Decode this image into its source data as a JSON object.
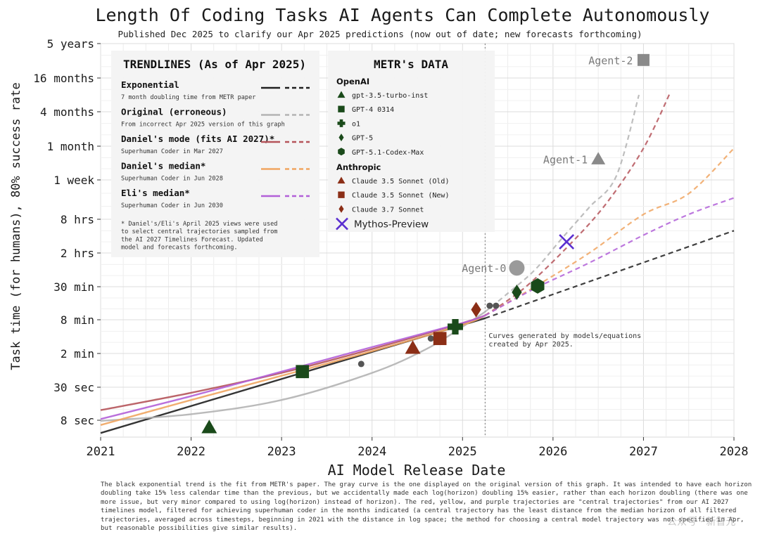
{
  "chart_data": {
    "type": "line",
    "title": "Length Of Coding Tasks AI Agents Can Complete Autonomously",
    "subtitle": "Published Dec 2025 to clarify our Apr 2025 predictions (now out of date; new forecasts forthcoming)",
    "xlabel": "AI Model Release Date",
    "ylabel": "Task time (for humans), 80% success rate",
    "xlim": [
      2021,
      2028
    ],
    "y_scale": "log",
    "x_ticks": [
      "2021",
      "2022",
      "2023",
      "2024",
      "2025",
      "2026",
      "2027",
      "2028"
    ],
    "y_ticks": [
      "8 sec",
      "30 sec",
      "2 min",
      "8 min",
      "30 min",
      "2 hrs",
      "8 hrs",
      "1 week",
      "1 month",
      "4 months",
      "16 months",
      "5 years"
    ],
    "grid": true,
    "cutoff_date": "Apr 2025",
    "cutoff_note": [
      "Curves generated by models/equations",
      "created by Apr 2025."
    ],
    "trendline_legend": {
      "title": "TRENDLINES (As of Apr 2025)",
      "placement": "top-left",
      "items": [
        {
          "name": "Exponential",
          "desc": "7 month doubling time from METR paper",
          "color": "#1f1f1f"
        },
        {
          "name": "Original (erroneous)",
          "desc": "From incorrect Apr 2025 version of this graph",
          "color": "#b3b3b3"
        },
        {
          "name": "Daniel's mode (fits AI 2027)*",
          "desc": "Superhuman Coder in Mar 2027",
          "color": "#b5545a"
        },
        {
          "name": "Daniel's median*",
          "desc": "Superhuman Coder in Jun 2028",
          "color": "#f0a560"
        },
        {
          "name": "Eli's median*",
          "desc": "Superhuman Coder in Jun 2030",
          "color": "#b260d8"
        }
      ],
      "footnote": [
        "* Daniel's/Eli's April 2025 views were used",
        "to select central trajectories sampled from",
        "the AI 2027 Timelines Forecast. Updated",
        "model and forecasts forthcoming."
      ]
    },
    "data_legend": {
      "title": "METR's DATA",
      "groups": [
        {
          "name": "OpenAI",
          "items": [
            "gpt-3.5-turbo-inst",
            "GPT-4 0314",
            "o1",
            "GPT-5",
            "GPT-5.1-Codex-Max"
          ]
        },
        {
          "name": "Anthropic",
          "items": [
            "Claude 3.5 Sonnet (Old)",
            "Claude 3.5 Sonnet (New)",
            "Claude 3.7 Sonnet"
          ]
        }
      ],
      "extra": "Mythos-Preview"
    },
    "series": [
      {
        "name": "Exponential",
        "color": "#1f1f1f",
        "x": [
          2021.0,
          2025.25,
          2028.0
        ],
        "y_minutes": [
          0.08,
          8.5,
          300
        ]
      },
      {
        "name": "Original (erroneous)",
        "color": "#b3b3b3",
        "x": [
          2021.0,
          2022.0,
          2023.0,
          2024.0,
          2024.6,
          2025.0,
          2025.25,
          2025.5,
          2025.8,
          2026.1,
          2026.4,
          2026.7,
          2026.95
        ],
        "y_minutes": [
          0.13,
          0.17,
          0.3,
          0.9,
          2.4,
          6.0,
          11,
          23,
          60,
          220,
          1200,
          12000,
          350000
        ]
      },
      {
        "name": "Daniel's mode (fits AI 2027)*",
        "color": "#b5545a",
        "x": [
          2021.0,
          2022.0,
          2023.0,
          2024.0,
          2025.0,
          2025.25,
          2025.7,
          2026.2,
          2026.6,
          2027.0,
          2027.3
        ],
        "y_minutes": [
          0.2,
          0.4,
          0.9,
          2.4,
          7.0,
          9.5,
          30,
          180,
          1800,
          40000,
          400000
        ]
      },
      {
        "name": "Daniel's median*",
        "color": "#f0a560",
        "x": [
          2021.0,
          2022.0,
          2023.0,
          2024.0,
          2025.0,
          2025.25,
          2025.8,
          2026.4,
          2027.0,
          2027.5,
          2028.0
        ],
        "y_minutes": [
          0.11,
          0.3,
          0.8,
          2.2,
          6.5,
          9.5,
          30,
          120,
          700,
          3500,
          40000
        ]
      },
      {
        "name": "Eli's median*",
        "color": "#b260d8",
        "x": [
          2021.0,
          2022.0,
          2023.0,
          2024.0,
          2025.0,
          2025.25,
          2025.8,
          2026.4,
          2027.0,
          2027.5,
          2028.0
        ],
        "y_minutes": [
          0.14,
          0.35,
          0.95,
          2.6,
          7.0,
          9.5,
          28,
          80,
          250,
          700,
          2500
        ]
      }
    ],
    "points": [
      {
        "label": "gpt-3.5-turbo-inst",
        "x": 2022.2,
        "y_minutes": 0.1,
        "marker": "triangle",
        "color": "#1a4a1a"
      },
      {
        "label": "GPT-4 0314",
        "x": 2023.23,
        "y_minutes": 0.95,
        "marker": "square",
        "color": "#1a4a1a"
      },
      {
        "label": "",
        "x": 2023.88,
        "y_minutes": 1.3,
        "marker": "dot",
        "color": "#555555"
      },
      {
        "label": "Claude 3.5 Sonnet (Old)",
        "x": 2024.45,
        "y_minutes": 2.5,
        "marker": "triangle",
        "color": "#8b2e16"
      },
      {
        "label": "",
        "x": 2024.65,
        "y_minutes": 3.7,
        "marker": "dot",
        "color": "#555555"
      },
      {
        "label": "Claude 3.5 Sonnet (New)",
        "x": 2024.75,
        "y_minutes": 3.7,
        "marker": "square",
        "color": "#8b2e16"
      },
      {
        "label": "o1",
        "x": 2024.92,
        "y_minutes": 6.0,
        "marker": "plus",
        "color": "#1a4a1a"
      },
      {
        "label": "Claude 3.7 Sonnet",
        "x": 2025.15,
        "y_minutes": 12.0,
        "marker": "diamond",
        "color": "#8b2e16"
      },
      {
        "label": "",
        "x": 2025.3,
        "y_minutes": 14.0,
        "marker": "dot",
        "color": "#555555"
      },
      {
        "label": "",
        "x": 2025.37,
        "y_minutes": 14.0,
        "marker": "dot",
        "color": "#555555"
      },
      {
        "label": "GPT-5",
        "x": 2025.6,
        "y_minutes": 24.0,
        "marker": "diamond",
        "color": "#1a4a1a"
      },
      {
        "label": "GPT-5.1-Codex-Max",
        "x": 2025.83,
        "y_minutes": 31.0,
        "marker": "hexagon",
        "color": "#1a4a1a"
      },
      {
        "label": "Mythos-Preview",
        "x": 2026.15,
        "y_minutes": 190.0,
        "marker": "x",
        "color": "#5b2fd0"
      }
    ],
    "annotations": [
      {
        "text": "Agent-0",
        "x": 2025.6,
        "y_minutes": 65.0,
        "marker": "circle",
        "color": "#9a9a9a"
      },
      {
        "text": "Agent-1",
        "x": 2026.5,
        "y_minutes": 25000.0,
        "marker": "triangle",
        "color": "#8a8a8a"
      },
      {
        "text": "Agent-2",
        "x": 2027.0,
        "y_minutes": 1400000.0,
        "marker": "square",
        "color": "#8a8a8a"
      }
    ],
    "caption": "The black exponential trend is the fit from METR's paper. The gray curve is the one displayed on the original version of this graph. It was intended to have each horizon doubling take 15% less calendar time than the previous, but we accidentally made each log(horizon) doubling 15% easier, rather than each horizon doubling (there was one more issue, but very minor compared to using log(horizon) instead of horizon). The red, yellow, and purple trajectories are \"central trajectories\" from our AI 2027 timelines model, filtered for achieving superhuman coder in the months indicated (a central trajectory has the least distance from the median horizon of all filtered trajectories, averaged across timesteps, beginning in 2021 with the distance in log space; the method for choosing a central model trajectory was not specified in Apr, but reasonable possibilities give similar results).",
    "watermark": "公众号 · 新智元"
  }
}
